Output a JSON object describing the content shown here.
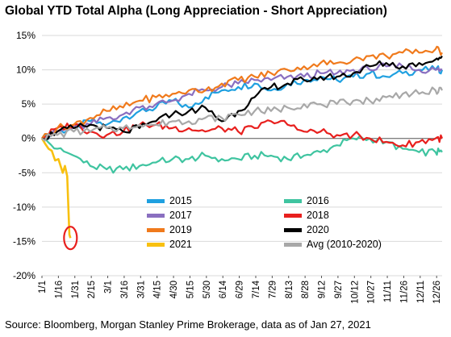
{
  "title": "Global YTD Total Alpha (Long Appreciation - Short Appreciation)",
  "source": "Source: Bloomberg, Morgan Stanley Prime Brokerage, data as of Jan 27, 2021",
  "chart_data": {
    "type": "line",
    "title": "Global YTD Total Alpha (Long Appreciation - Short Appreciation)",
    "xlabel": "",
    "ylabel": "",
    "ylim": [
      -20,
      15
    ],
    "y_ticks": [
      15,
      10,
      5,
      0,
      -5,
      -10,
      -15,
      -20
    ],
    "y_tick_labels": [
      "15%",
      "10%",
      "5%",
      "0%",
      "-5%",
      "-10%",
      "-15%",
      "-20%"
    ],
    "x_ticks": [
      "1/1",
      "1/16",
      "1/31",
      "2/15",
      "3/1",
      "3/16",
      "3/31",
      "4/15",
      "4/30",
      "5/15",
      "5/30",
      "6/14",
      "6/29",
      "7/14",
      "7/29",
      "8/13",
      "8/28",
      "9/12",
      "9/27",
      "10/12",
      "10/27",
      "11/11",
      "11/26",
      "12/11",
      "12/26"
    ],
    "x_tick_days": [
      1,
      16,
      31,
      46,
      61,
      76,
      91,
      106,
      121,
      136,
      151,
      166,
      181,
      196,
      211,
      226,
      241,
      256,
      271,
      286,
      301,
      316,
      331,
      346,
      361
    ],
    "xlim_days": [
      1,
      366
    ],
    "grid": true,
    "legend_position": "bottom-center",
    "annotation": "red circle marks latest 2021 value",
    "series": [
      {
        "name": "2015",
        "color": "#1fa0e0",
        "x": [
          1,
          15,
          30,
          45,
          60,
          75,
          90,
          105,
          120,
          135,
          150,
          165,
          180,
          195,
          210,
          225,
          240,
          255,
          270,
          285,
          300,
          315,
          330,
          345,
          360,
          366
        ],
        "y": [
          0,
          1.0,
          1.5,
          2.5,
          2.0,
          3.0,
          4.0,
          4.5,
          5.5,
          4.5,
          6.0,
          7.0,
          7.5,
          8.0,
          7.0,
          8.0,
          8.5,
          9.0,
          8.5,
          9.0,
          9.5,
          9.0,
          9.5,
          10.0,
          10.0,
          10.0
        ]
      },
      {
        "name": "2016",
        "color": "#3fc4a0",
        "x": [
          1,
          15,
          30,
          45,
          60,
          75,
          90,
          105,
          120,
          135,
          150,
          165,
          180,
          195,
          210,
          225,
          240,
          255,
          270,
          285,
          300,
          315,
          330,
          345,
          360,
          366
        ],
        "y": [
          0,
          -1.5,
          -2.5,
          -4.0,
          -4.5,
          -4.5,
          -4.0,
          -3.5,
          -3.0,
          -3.0,
          -2.5,
          -3.0,
          -3.0,
          -2.5,
          -2.5,
          -3.0,
          -2.5,
          -2.0,
          -1.0,
          0,
          0,
          -0.5,
          -1.5,
          -2.0,
          -2.0,
          -2.0
        ]
      },
      {
        "name": "2017",
        "color": "#8a6fc0",
        "x": [
          1,
          15,
          30,
          45,
          60,
          75,
          90,
          105,
          120,
          135,
          150,
          165,
          180,
          195,
          210,
          225,
          240,
          255,
          270,
          285,
          300,
          315,
          330,
          345,
          360,
          366
        ],
        "y": [
          0,
          1.0,
          1.5,
          2.0,
          3.0,
          3.5,
          4.5,
          5.0,
          5.5,
          6.5,
          7.0,
          7.5,
          8.0,
          8.5,
          8.5,
          9.0,
          9.0,
          9.5,
          9.5,
          10.0,
          10.0,
          10.5,
          10.5,
          10.0,
          10.0,
          10.0
        ]
      },
      {
        "name": "2018",
        "color": "#e8201e",
        "x": [
          1,
          15,
          30,
          45,
          60,
          75,
          90,
          105,
          120,
          135,
          150,
          165,
          180,
          195,
          210,
          225,
          240,
          255,
          270,
          285,
          300,
          315,
          330,
          345,
          360,
          366
        ],
        "y": [
          0,
          1.5,
          2.0,
          1.0,
          0.5,
          1.0,
          2.0,
          2.0,
          1.5,
          1.5,
          1.0,
          1.5,
          1.0,
          1.5,
          2.5,
          2.0,
          1.0,
          1.0,
          0.5,
          0.5,
          0,
          -0.5,
          -1.0,
          -0.5,
          0,
          0
        ]
      },
      {
        "name": "2019",
        "color": "#f07a1c",
        "x": [
          1,
          15,
          30,
          45,
          60,
          75,
          90,
          105,
          120,
          135,
          150,
          165,
          180,
          195,
          210,
          225,
          240,
          255,
          270,
          285,
          300,
          315,
          330,
          345,
          360,
          366
        ],
        "y": [
          0,
          1.5,
          2.0,
          3.0,
          4.0,
          4.5,
          5.5,
          6.0,
          6.5,
          7.0,
          7.0,
          8.0,
          8.5,
          9.0,
          9.5,
          10.0,
          10.5,
          11.0,
          11.0,
          11.5,
          12.0,
          12.0,
          12.5,
          12.5,
          13.0,
          12.5
        ]
      },
      {
        "name": "2020",
        "color": "#000000",
        "x": [
          1,
          15,
          30,
          45,
          60,
          75,
          90,
          105,
          120,
          135,
          150,
          165,
          180,
          195,
          210,
          225,
          240,
          255,
          270,
          285,
          300,
          315,
          330,
          345,
          360,
          366
        ],
        "y": [
          0,
          1.0,
          1.5,
          2.0,
          1.5,
          1.0,
          1.5,
          2.5,
          3.5,
          4.0,
          4.5,
          2.5,
          4.0,
          6.0,
          7.5,
          8.0,
          8.5,
          9.0,
          9.0,
          9.5,
          10.5,
          11.0,
          10.5,
          11.0,
          11.5,
          12.0
        ]
      },
      {
        "name": "2021",
        "color": "#f8c010",
        "x": [
          1,
          4,
          7,
          10,
          13,
          16,
          18,
          20,
          22,
          24,
          26,
          27
        ],
        "y": [
          0,
          -0.8,
          -1.5,
          -1.8,
          -3.2,
          -3.0,
          -4.0,
          -5.0,
          -4.0,
          -5.5,
          -14.0,
          -14.5
        ]
      },
      {
        "name": "Avg (2010-2020)",
        "color": "#a8a8a8",
        "x": [
          1,
          15,
          30,
          45,
          60,
          75,
          90,
          105,
          120,
          135,
          150,
          165,
          180,
          195,
          210,
          225,
          240,
          255,
          270,
          285,
          300,
          315,
          330,
          345,
          360,
          366
        ],
        "y": [
          0,
          0.5,
          1.0,
          1.0,
          1.5,
          1.5,
          2.0,
          2.0,
          2.5,
          2.5,
          3.0,
          3.0,
          3.5,
          4.0,
          4.0,
          4.5,
          5.0,
          5.0,
          5.0,
          5.5,
          5.5,
          6.0,
          6.5,
          6.5,
          7.0,
          7.0
        ]
      }
    ]
  }
}
